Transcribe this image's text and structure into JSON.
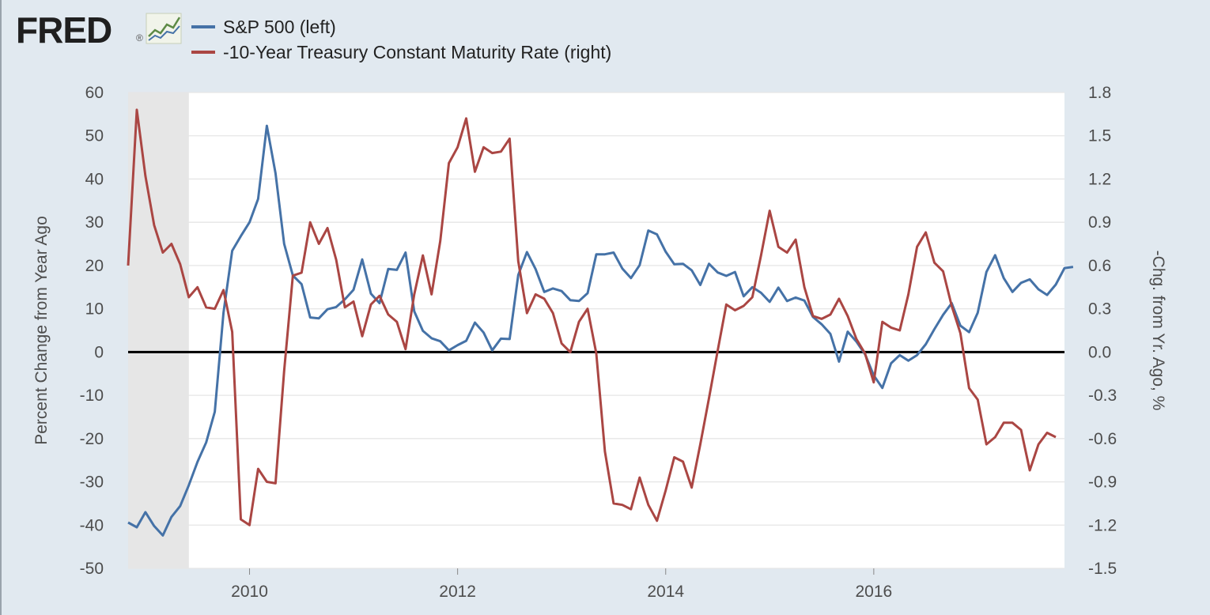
{
  "logo": {
    "text": "FRED",
    "trademark": "®"
  },
  "chart_data": {
    "type": "line",
    "legend": [
      {
        "label": "S&P 500 (left)",
        "color": "#4572a7"
      },
      {
        "label": "-10-Year Treasury Constant Maturity Rate (right)",
        "color": "#aa4643"
      }
    ],
    "y_left": {
      "label": "Percent Change from Year Ago",
      "min": -50,
      "max": 60,
      "ticks": [
        60,
        50,
        40,
        30,
        20,
        10,
        0,
        -10,
        -20,
        -30,
        -40,
        -50
      ],
      "tick_labels": [
        "60",
        "50",
        "40",
        "30",
        "20",
        "10",
        "0",
        "-10",
        "-20",
        "-30",
        "-40",
        "-50"
      ]
    },
    "y_right": {
      "label": "-Chg. from Yr. Ago, %",
      "min": -1.5,
      "max": 1.8,
      "ticks": [
        1.8,
        1.5,
        1.2,
        0.9,
        0.6,
        0.3,
        0.0,
        -0.3,
        -0.6,
        -0.9,
        -1.2,
        -1.5
      ],
      "tick_labels": [
        "1.8",
        "1.5",
        "1.2",
        "0.9",
        "0.6",
        "0.3",
        "0.0",
        "-0.3",
        "-0.6",
        "-0.9",
        "-1.2",
        "-1.5"
      ]
    },
    "x": {
      "min": 2008.833,
      "max": 2017.833,
      "ticks": [
        2010,
        2012,
        2014,
        2016
      ],
      "tick_labels": [
        "2010",
        "2012",
        "2014",
        "2016"
      ]
    },
    "recession": {
      "start": 2008.833,
      "end": 2009.417
    },
    "series": [
      {
        "name": "S&P 500 (left)",
        "axis": "left",
        "color": "#4572a7",
        "x_start": 2008.833,
        "x_step": 0.08333,
        "values": [
          -39.4,
          -40.5,
          -37.0,
          -40.2,
          -42.4,
          -38.1,
          -35.6,
          -30.8,
          -25.4,
          -20.9,
          -13.8,
          9.1,
          23.4,
          26.8,
          30.0,
          35.4,
          52.3,
          41.3,
          25.0,
          17.7,
          15.7,
          8.0,
          7.8,
          9.9,
          10.4,
          12.2,
          14.4,
          21.4,
          13.5,
          11.3,
          19.2,
          19.0,
          23.0,
          9.4,
          4.9,
          3.2,
          2.5,
          0.4,
          1.6,
          2.6,
          6.8,
          4.5,
          0.4,
          3.1,
          3.0,
          17.8,
          23.1,
          19.2,
          13.9,
          14.7,
          14.1,
          12.0,
          11.8,
          13.6,
          22.6,
          22.6,
          23.0,
          19.3,
          17.1,
          20.1,
          28.1,
          27.2,
          23.2,
          20.3,
          20.4,
          18.9,
          15.5,
          20.4,
          18.4,
          17.6,
          18.5,
          12.9,
          15.0,
          13.7,
          11.6,
          14.9,
          11.8,
          12.6,
          11.9,
          8.1,
          6.4,
          4.2,
          -2.2,
          4.7,
          2.4,
          -0.5,
          -5.4,
          -8.3,
          -2.6,
          -0.7,
          -2.0,
          -0.7,
          1.8,
          5.3,
          8.6,
          11.3,
          6.1,
          4.6,
          9.1,
          18.5,
          22.4,
          17.1,
          13.9,
          16.0,
          16.8,
          14.5,
          13.2,
          15.6,
          19.4,
          19.7
        ]
      },
      {
        "name": "-10-Year Treasury Constant Maturity Rate (right)",
        "axis": "right",
        "color": "#aa4643",
        "x_start": 2008.833,
        "x_step": 0.08333,
        "values": [
          0.6,
          1.68,
          1.22,
          0.88,
          0.69,
          0.75,
          0.61,
          0.38,
          0.45,
          0.31,
          0.3,
          0.43,
          0.14,
          -1.16,
          -1.2,
          -0.81,
          -0.9,
          -0.91,
          -0.13,
          0.53,
          0.55,
          0.9,
          0.75,
          0.86,
          0.64,
          0.31,
          0.35,
          0.11,
          0.33,
          0.39,
          0.26,
          0.21,
          0.02,
          0.4,
          0.67,
          0.4,
          0.77,
          1.31,
          1.42,
          1.62,
          1.25,
          1.42,
          1.38,
          1.39,
          1.48,
          0.63,
          0.27,
          0.4,
          0.37,
          0.27,
          0.06,
          0.0,
          0.21,
          0.3,
          -0.01,
          -0.69,
          -1.05,
          -1.06,
          -1.09,
          -0.87,
          -1.06,
          -1.17,
          -0.96,
          -0.73,
          -0.76,
          -0.94,
          -0.64,
          -0.32,
          0.01,
          0.33,
          0.29,
          0.32,
          0.38,
          0.67,
          0.98,
          0.73,
          0.69,
          0.78,
          0.45,
          0.25,
          0.23,
          0.26,
          0.37,
          0.25,
          0.09,
          -0.01,
          -0.21,
          0.21,
          0.17,
          0.15,
          0.4,
          0.73,
          0.83,
          0.62,
          0.56,
          0.32,
          0.13,
          -0.25,
          -0.33,
          -0.64,
          -0.59,
          -0.49,
          -0.49,
          -0.54,
          -0.82,
          -0.64,
          -0.56,
          -0.59
        ]
      }
    ]
  }
}
